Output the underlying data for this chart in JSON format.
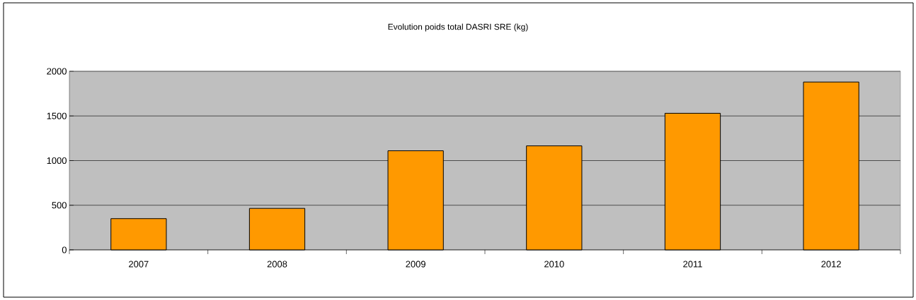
{
  "chart_data": {
    "type": "bar",
    "title": "Evolution poids total DASRI SRE (kg)",
    "categories": [
      "2007",
      "2008",
      "2009",
      "2010",
      "2011",
      "2012"
    ],
    "values": [
      350,
      465,
      1110,
      1165,
      1530,
      1880
    ],
    "color": "#ff9900",
    "ylim": [
      0,
      2000
    ],
    "yticks": [
      0,
      500,
      1000,
      1500,
      2000
    ],
    "grid": "y"
  }
}
